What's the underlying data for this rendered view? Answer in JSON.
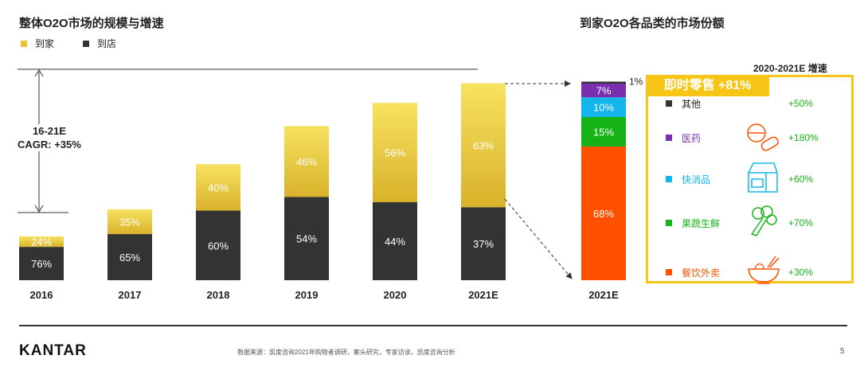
{
  "left_title": "整体O2O市场的规模与增速",
  "right_title": "到家O2O各品类的市场份额",
  "legend": [
    {
      "label": "到家",
      "color": "#e9c334"
    },
    {
      "label": "到店",
      "color": "#333333"
    }
  ],
  "cagr": {
    "line1": "16-21E",
    "line2": "CAGR: +35%"
  },
  "chart_data": {
    "type": "bar",
    "title": "整体O2O市场的规模与增速",
    "categories": [
      "2016",
      "2017",
      "2018",
      "2019",
      "2020",
      "2021E"
    ],
    "series": [
      {
        "name": "到店",
        "color": "#333333",
        "share_labels": [
          "76%",
          "65%",
          "60%",
          "54%",
          "44%",
          "37%"
        ],
        "share": [
          76,
          65,
          60,
          54,
          44,
          37
        ]
      },
      {
        "name": "到家",
        "color": "#e9c334",
        "share_labels": [
          "24%",
          "35%",
          "40%",
          "46%",
          "56%",
          "63%"
        ],
        "share": [
          24,
          35,
          40,
          46,
          56,
          63
        ]
      }
    ],
    "relative_totals": [
      1.0,
      1.62,
      2.65,
      3.52,
      4.05,
      4.5
    ],
    "stacked": true,
    "ylabel": "",
    "xlabel": ""
  },
  "share_chart": {
    "type": "bar",
    "category": "2021E",
    "segments": [
      {
        "name": "餐饮外卖",
        "value": 68,
        "label": "68%",
        "color": "#ff5000"
      },
      {
        "name": "果蔬生鲜",
        "value": 15,
        "label": "15%",
        "color": "#16b316"
      },
      {
        "name": "快消品",
        "value": 10,
        "label": "10%",
        "color": "#12b6ea"
      },
      {
        "name": "医药",
        "value": 7,
        "label": "7%",
        "color": "#7a2fb0"
      },
      {
        "name": "其他",
        "value": 1,
        "label": "1%",
        "color": "#333333"
      }
    ]
  },
  "growth_header": "2020-2021E 增速",
  "instant_retail": "即时零售 +81%",
  "categories": [
    {
      "name": "其他",
      "growth": "+50%",
      "color": "#333333",
      "text_color": "#222222",
      "icon": ""
    },
    {
      "name": "医药",
      "growth": "+180%",
      "color": "#7a2fb0",
      "text_color": "#7a2fb0",
      "icon": "pills-icon"
    },
    {
      "name": "快消品",
      "growth": "+60%",
      "color": "#12b6ea",
      "text_color": "#12b6ea",
      "icon": "milk-carton-icon"
    },
    {
      "name": "果蔬生鲜",
      "growth": "+70%",
      "color": "#16b316",
      "text_color": "#16b316",
      "icon": "broccoli-icon"
    },
    {
      "name": "餐饮外卖",
      "growth": "+30%",
      "color": "#ff5000",
      "text_color": "#ff5000",
      "icon": "noodle-bowl-icon"
    }
  ],
  "footer": {
    "logo": "KANTAR",
    "source": "数据来源：凯度咨询2021年购物者调研，案头研究，专家访谈，凯度咨询分析",
    "page": "5"
  }
}
